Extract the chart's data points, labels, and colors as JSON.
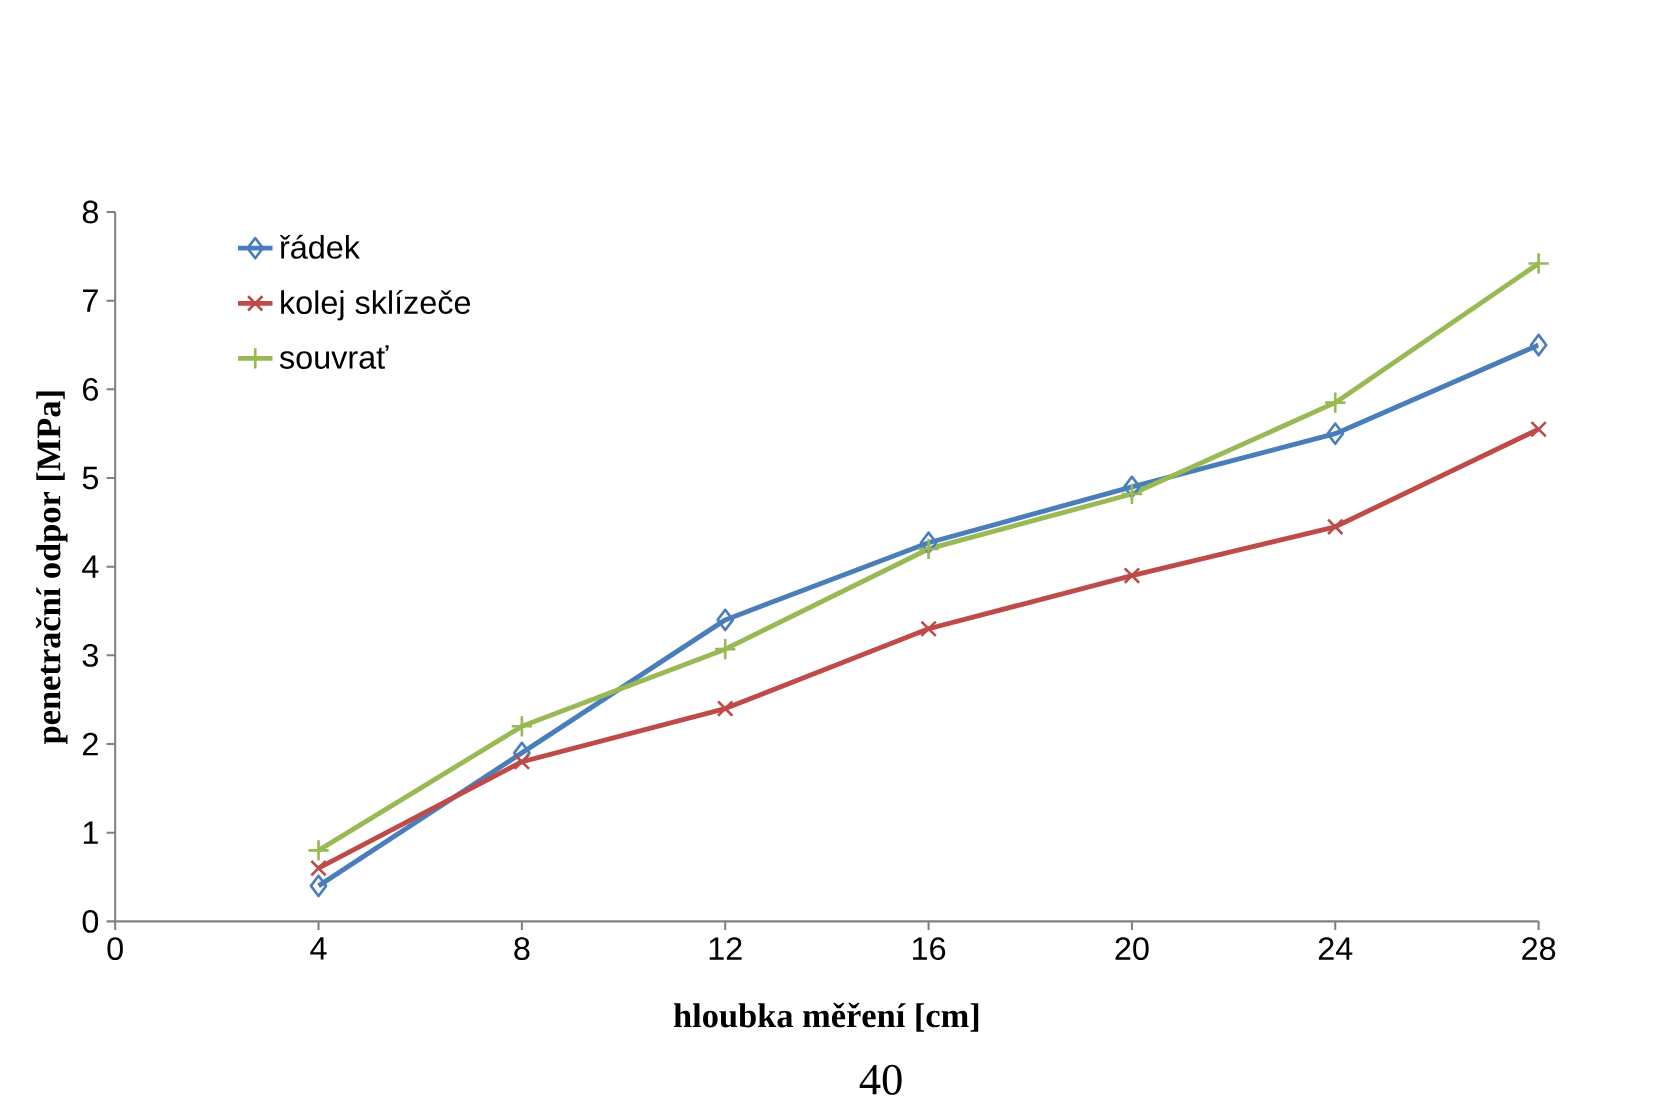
{
  "chart_data": {
    "type": "line",
    "xlabel": "hloubka měření [cm]",
    "ylabel": "penetrační odpor [MPa]",
    "x": [
      4,
      8,
      12,
      16,
      20,
      24,
      28
    ],
    "series": [
      {
        "name": "řádek",
        "color": "#4a7ebb",
        "marker": "diamond",
        "values": [
          0.4,
          1.9,
          3.4,
          4.27,
          4.9,
          5.5,
          6.5
        ]
      },
      {
        "name": "kolej sklízeče",
        "color": "#be4b48",
        "marker": "cross",
        "values": [
          0.6,
          1.8,
          2.4,
          3.3,
          3.9,
          4.45,
          5.55
        ]
      },
      {
        "name": "souvrať",
        "color": "#98b954",
        "marker": "plus",
        "values": [
          0.8,
          2.2,
          3.07,
          4.2,
          4.82,
          5.85,
          7.42
        ]
      }
    ],
    "xlim": [
      0,
      28
    ],
    "ylim": [
      0,
      8
    ],
    "xticks": [
      0,
      4,
      8,
      12,
      16,
      20,
      24,
      28
    ],
    "yticks": [
      0,
      1,
      2,
      3,
      4,
      5,
      6,
      7,
      8
    ],
    "grid": false,
    "legend": "top left",
    "line_style": "solid",
    "annotations": [
      "40"
    ]
  }
}
